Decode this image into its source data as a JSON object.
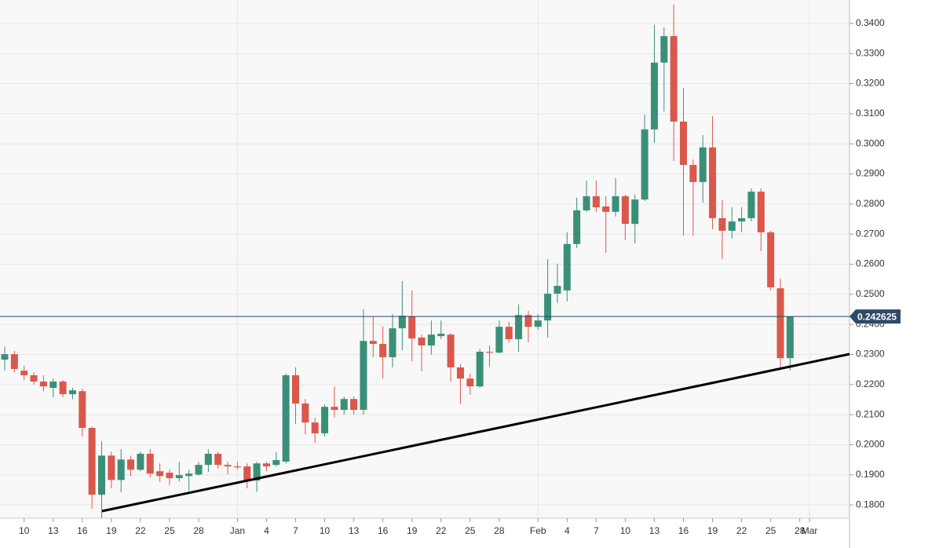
{
  "chart_data": {
    "type": "candlestick",
    "categories": [
      null,
      null,
      "10",
      null,
      null,
      "13",
      null,
      null,
      "16",
      null,
      null,
      "19",
      null,
      null,
      "22",
      null,
      null,
      "25",
      null,
      null,
      "28",
      null,
      null,
      null,
      "Jan",
      null,
      null,
      "4",
      null,
      null,
      "7",
      null,
      null,
      "10",
      null,
      null,
      "13",
      null,
      null,
      "16",
      null,
      null,
      "19",
      null,
      null,
      "22",
      null,
      null,
      "25",
      null,
      null,
      "28",
      null,
      null,
      null,
      "Feb",
      null,
      null,
      "4",
      null,
      null,
      "7",
      null,
      null,
      "10",
      null,
      null,
      "13",
      null,
      null,
      "16",
      null,
      null,
      "19",
      null,
      null,
      "22",
      null,
      null,
      "25",
      null,
      null,
      "28",
      "Mar"
    ],
    "open": [
      0.2283,
      0.2301,
      0.2246,
      0.2231,
      0.221,
      0.2189,
      0.221,
      0.2168,
      0.2178,
      0.2056,
      0.1834,
      0.1964,
      0.1883,
      0.1951,
      0.1917,
      0.197,
      0.1912,
      0.1907,
      0.1889,
      0.1896,
      0.1901,
      0.1933,
      0.197,
      0.1933,
      0.1928,
      0.1928,
      0.1881,
      0.1938,
      0.1933,
      0.1944,
      0.2231,
      0.2137,
      0.2074,
      0.2038,
      0.2126,
      0.2116,
      0.2152,
      0.2116,
      0.2345,
      0.2335,
      0.2291,
      0.2387,
      0.2426,
      0.2356,
      0.233,
      0.2361,
      0.2366,
      0.2257,
      0.222,
      0.2194,
      0.2309,
      0.2306,
      0.2392,
      0.2351,
      0.2431,
      0.2392,
      0.2413,
      0.2502,
      0.2513,
      0.2667,
      0.2779,
      0.2826,
      0.2792,
      0.2774,
      0.2826,
      0.2734,
      0.2815,
      0.3048,
      0.327,
      0.3358,
      0.3074,
      0.293,
      0.2873,
      0.2988,
      0.2753,
      0.2711,
      0.2742,
      0.2753,
      0.2841,
      0.2706,
      0.252,
      0.2288,
      null,
      null
    ],
    "high": [
      0.2326,
      0.2312,
      0.2262,
      0.2241,
      0.2231,
      0.222,
      0.2215,
      0.2189,
      0.2186,
      0.2061,
      0.2011,
      0.1977,
      0.1985,
      0.1964,
      0.1977,
      0.1985,
      0.1938,
      0.1917,
      0.1943,
      0.1917,
      0.1943,
      0.1985,
      0.1977,
      0.1943,
      0.1943,
      0.1938,
      0.1943,
      0.1943,
      0.1975,
      0.2236,
      0.2257,
      0.2152,
      0.209,
      0.2134,
      0.2194,
      0.216,
      0.216,
      0.245,
      0.2426,
      0.2393,
      0.2434,
      0.2544,
      0.2513,
      0.2366,
      0.2413,
      0.2413,
      0.2371,
      0.2267,
      0.2236,
      0.2319,
      0.233,
      0.2413,
      0.2408,
      0.2466,
      0.2445,
      0.2434,
      0.2617,
      0.2601,
      0.2706,
      0.2821,
      0.2878,
      0.2878,
      0.2826,
      0.2886,
      0.2831,
      0.2831,
      0.3097,
      0.3395,
      0.3387,
      0.3463,
      0.3186,
      0.2948,
      0.3029,
      0.3092,
      0.2813,
      0.2789,
      0.2789,
      0.2852,
      0.2852,
      0.2711,
      0.2552,
      0.2426,
      null,
      null
    ],
    "low": [
      0.2247,
      0.224,
      0.2215,
      0.22,
      0.2178,
      0.2158,
      0.2158,
      0.2152,
      0.2027,
      0.1787,
      0.1756,
      0.1855,
      0.1842,
      0.1896,
      0.1912,
      0.1891,
      0.1876,
      0.1865,
      0.1878,
      0.1847,
      0.1897,
      0.191,
      0.192,
      0.1902,
      0.1917,
      0.1855,
      0.1844,
      0.1912,
      0.1928,
      0.1938,
      0.2069,
      0.2035,
      0.2006,
      0.2027,
      0.209,
      0.21,
      0.21,
      0.21,
      0.2291,
      0.222,
      0.2257,
      0.2314,
      0.2278,
      0.2244,
      0.2299,
      0.2351,
      0.221,
      0.2137,
      0.2166,
      0.2189,
      0.2259,
      0.2304,
      0.234,
      0.2309,
      0.234,
      0.2382,
      0.2356,
      0.2471,
      0.2476,
      0.2654,
      0.2774,
      0.2774,
      0.2638,
      0.2758,
      0.268,
      0.2669,
      0.281,
      0.3003,
      0.3108,
      0.2943,
      0.2695,
      0.2695,
      0.2805,
      0.2716,
      0.2617,
      0.2685,
      0.2706,
      0.2742,
      0.2643,
      0.2513,
      0.2257,
      0.2247,
      null,
      null
    ],
    "close": [
      0.2301,
      0.2252,
      0.2231,
      0.221,
      0.2194,
      0.221,
      0.2168,
      0.2181,
      0.2056,
      0.1834,
      0.1964,
      0.1883,
      0.1951,
      0.1917,
      0.197,
      0.1904,
      0.1896,
      0.1889,
      0.1899,
      0.1904,
      0.1933,
      0.197,
      0.1933,
      0.1928,
      0.1925,
      0.1881,
      0.1938,
      0.1928,
      0.1949,
      0.2231,
      0.2137,
      0.2074,
      0.2038,
      0.2126,
      0.2116,
      0.2152,
      0.2116,
      0.2345,
      0.2335,
      0.2291,
      0.2387,
      0.2429,
      0.2353,
      0.233,
      0.2366,
      0.2369,
      0.2257,
      0.222,
      0.2194,
      0.2309,
      0.2306,
      0.2392,
      0.2351,
      0.2431,
      0.2392,
      0.2413,
      0.2502,
      0.2528,
      0.2667,
      0.2779,
      0.2826,
      0.2789,
      0.2774,
      0.2826,
      0.2734,
      0.2815,
      0.3048,
      0.327,
      0.3358,
      0.3074,
      0.293,
      0.2873,
      0.2988,
      0.2753,
      0.2711,
      0.2742,
      0.2753,
      0.2841,
      0.2706,
      0.2523,
      0.2288,
      0.2426,
      null,
      null
    ],
    "up_color": "#3a8f78",
    "down_color": "#d9584b",
    "ylim": [
      0.1756,
      0.3478
    ],
    "yticks": [
      {
        "value": 0.18,
        "label": "0.1800"
      },
      {
        "value": 0.19,
        "label": "0.1900"
      },
      {
        "value": 0.2,
        "label": "0.2000"
      },
      {
        "value": 0.21,
        "label": "0.2100"
      },
      {
        "value": 0.22,
        "label": "0.2200"
      },
      {
        "value": 0.23,
        "label": "0.2300"
      },
      {
        "value": 0.24,
        "label": "0.2400"
      },
      {
        "value": 0.25,
        "label": "0.2500"
      },
      {
        "value": 0.26,
        "label": "0.2600"
      },
      {
        "value": 0.27,
        "label": "0.2700"
      },
      {
        "value": 0.28,
        "label": "0.2800"
      },
      {
        "value": 0.29,
        "label": "0.2900"
      },
      {
        "value": 0.3,
        "label": "0.3000"
      },
      {
        "value": 0.31,
        "label": "0.3100"
      },
      {
        "value": 0.32,
        "label": "0.3200"
      },
      {
        "value": 0.33,
        "label": "0.3300"
      },
      {
        "value": 0.34,
        "label": "0.3400"
      }
    ],
    "grid": true,
    "last_price": 0.242625
  }
}
